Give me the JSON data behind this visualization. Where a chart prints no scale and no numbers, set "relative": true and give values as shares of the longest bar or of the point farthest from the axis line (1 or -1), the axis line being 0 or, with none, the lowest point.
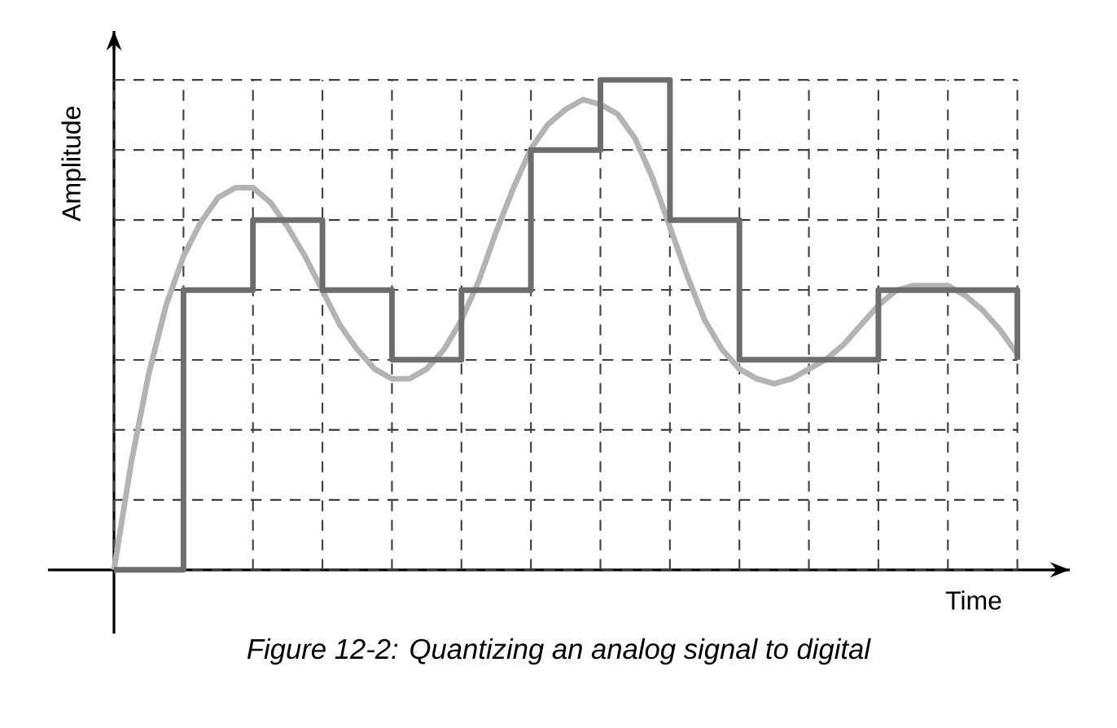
{
  "chart_data": {
    "type": "line",
    "relative": true,
    "xlabel": "Time",
    "ylabel": "Amplitude",
    "annotations": [
      "Figure 12-2: Quantizing an analog signal to digital"
    ],
    "categories": [
      null,
      null,
      null,
      null,
      null,
      null,
      null,
      null,
      null,
      null,
      null,
      null,
      null,
      null,
      null,
      null,
      null,
      null,
      null,
      null,
      null,
      null,
      null,
      null,
      null,
      null,
      null,
      null,
      null,
      null,
      null,
      null,
      null,
      null,
      null,
      null,
      null,
      null,
      null,
      null,
      null,
      null,
      null,
      null,
      null,
      null,
      null,
      null,
      null,
      null,
      null,
      null,
      null
    ],
    "grid": true,
    "marker": "none",
    "line_style": "solid",
    "series": [
      {
        "color": "#b3b3b3",
        "values": [
          0,
          0.22,
          0.4,
          0.54,
          0.64,
          0.71,
          0.76,
          0.78,
          0.78,
          0.75,
          0.7,
          0.64,
          0.57,
          0.5,
          0.45,
          0.41,
          0.39,
          0.39,
          0.41,
          0.45,
          0.51,
          0.59,
          0.69,
          0.78,
          0.86,
          0.91,
          0.94,
          0.96,
          0.95,
          0.93,
          0.88,
          0.8,
          0.7,
          0.6,
          0.51,
          0.45,
          0.41,
          0.39,
          0.38,
          0.39,
          0.41,
          0.43,
          0.46,
          0.5,
          0.54,
          0.57,
          0.58,
          0.58,
          0.58,
          0.56,
          0.53,
          0.49,
          0.44
        ]
      },
      {
        "type": "step",
        "color": "#6d6d6d",
        "values": [
          0,
          0,
          0,
          0,
          0.571,
          0.571,
          0.571,
          0.571,
          0.714,
          0.714,
          0.714,
          0.714,
          0.571,
          0.571,
          0.571,
          0.571,
          0.429,
          0.429,
          0.429,
          0.429,
          0.571,
          0.571,
          0.571,
          0.571,
          0.857,
          0.857,
          0.857,
          0.857,
          1,
          1,
          1,
          1,
          0.714,
          0.714,
          0.714,
          0.714,
          0.429,
          0.429,
          0.429,
          0.429,
          0.429,
          0.429,
          0.429,
          0.429,
          0.571,
          0.571,
          0.571,
          0.571,
          0.571,
          0.571,
          0.571,
          0.571,
          0.429
        ]
      }
    ]
  }
}
